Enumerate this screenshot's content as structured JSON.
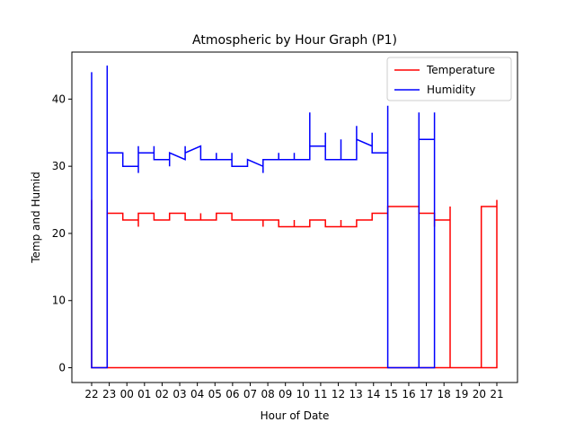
{
  "chart_data": {
    "type": "line",
    "title": "Atmospheric by Hour Graph (P1)",
    "xlabel": "Hour of Date",
    "ylabel": "Temp and Humid",
    "categories": [
      "22",
      "23",
      "00",
      "01",
      "02",
      "03",
      "04",
      "05",
      "06",
      "07",
      "08",
      "09",
      "10",
      "11",
      "12",
      "13",
      "14",
      "15",
      "16",
      "17",
      "18",
      "19",
      "20",
      "21"
    ],
    "ylim": [
      -2.2,
      47
    ],
    "yticks": [
      0,
      10,
      20,
      30,
      40
    ],
    "grid": false,
    "legend_position": "top-right",
    "series": [
      {
        "name": "Temperature",
        "color": "#ff0000",
        "points": [
          [
            0,
            25
          ],
          [
            0,
            0
          ],
          [
            1,
            0
          ],
          [
            1,
            23
          ],
          [
            2,
            23
          ],
          [
            2,
            22
          ],
          [
            3,
            22
          ],
          [
            3,
            21
          ],
          [
            3,
            23
          ],
          [
            4,
            23
          ],
          [
            4,
            22
          ],
          [
            5,
            22
          ],
          [
            5,
            23
          ],
          [
            6,
            23
          ],
          [
            6,
            22
          ],
          [
            7,
            22
          ],
          [
            7,
            23
          ],
          [
            7,
            22
          ],
          [
            8,
            22
          ],
          [
            8,
            23
          ],
          [
            9,
            23
          ],
          [
            9,
            22
          ],
          [
            10,
            22
          ],
          [
            11,
            22
          ],
          [
            11,
            21
          ],
          [
            11,
            22
          ],
          [
            12,
            22
          ],
          [
            12,
            21
          ],
          [
            13,
            21
          ],
          [
            13,
            22
          ],
          [
            13,
            21
          ],
          [
            14,
            21
          ],
          [
            14,
            22
          ],
          [
            15,
            22
          ],
          [
            15,
            21
          ],
          [
            16,
            21
          ],
          [
            16,
            22
          ],
          [
            16,
            21
          ],
          [
            17,
            21
          ],
          [
            17,
            22
          ],
          [
            18,
            22
          ],
          [
            18,
            23
          ],
          [
            19,
            23
          ],
          [
            19,
            22
          ],
          [
            19,
            24
          ],
          [
            20,
            24
          ],
          [
            21,
            24
          ],
          [
            21,
            23
          ],
          [
            22,
            23
          ],
          [
            22,
            22
          ],
          [
            22,
            21
          ],
          [
            22,
            22
          ],
          [
            23,
            22
          ],
          [
            23,
            0
          ],
          [
            23,
            24
          ],
          [
            23,
            0
          ],
          [
            24,
            0
          ],
          [
            25,
            0
          ],
          [
            25,
            24
          ],
          [
            26,
            24
          ],
          [
            26,
            25
          ],
          [
            26,
            0
          ],
          [
            25,
            0
          ],
          [
            1,
            0
          ],
          [
            0,
            0
          ]
        ]
      },
      {
        "name": "Humidity",
        "color": "#0000ff",
        "points": [
          [
            0,
            34
          ],
          [
            0,
            44
          ],
          [
            0,
            0
          ],
          [
            1,
            0
          ],
          [
            1,
            45
          ],
          [
            1,
            32
          ],
          [
            2,
            32
          ],
          [
            2,
            30
          ],
          [
            3,
            30
          ],
          [
            3,
            29
          ],
          [
            3,
            33
          ],
          [
            3,
            32
          ],
          [
            4,
            32
          ],
          [
            4,
            33
          ],
          [
            4,
            31
          ],
          [
            5,
            31
          ],
          [
            5,
            30
          ],
          [
            5,
            32
          ],
          [
            6,
            31
          ],
          [
            6,
            33
          ],
          [
            6,
            32
          ],
          [
            7,
            33
          ],
          [
            7,
            31
          ],
          [
            8,
            31
          ],
          [
            8,
            32
          ],
          [
            8,
            31
          ],
          [
            9,
            31
          ],
          [
            9,
            32
          ],
          [
            9,
            30
          ],
          [
            10,
            30
          ],
          [
            10,
            31
          ],
          [
            11,
            30
          ],
          [
            11,
            29
          ],
          [
            11,
            31
          ],
          [
            12,
            31
          ],
          [
            12,
            32
          ],
          [
            12,
            31
          ],
          [
            13,
            31
          ],
          [
            13,
            32
          ],
          [
            13,
            31
          ],
          [
            14,
            31
          ],
          [
            14,
            38
          ],
          [
            14,
            33
          ],
          [
            15,
            33
          ],
          [
            15,
            35
          ],
          [
            15,
            31
          ],
          [
            16,
            31
          ],
          [
            16,
            34
          ],
          [
            16,
            31
          ],
          [
            17,
            31
          ],
          [
            17,
            36
          ],
          [
            17,
            34
          ],
          [
            18,
            33
          ],
          [
            18,
            35
          ],
          [
            18,
            32
          ],
          [
            19,
            32
          ],
          [
            19,
            39
          ],
          [
            19,
            0
          ],
          [
            21,
            0
          ],
          [
            21,
            38
          ],
          [
            21,
            34
          ],
          [
            22,
            34
          ],
          [
            22,
            38
          ],
          [
            22,
            34
          ],
          [
            22,
            0
          ],
          [
            19,
            0
          ]
        ]
      }
    ]
  }
}
